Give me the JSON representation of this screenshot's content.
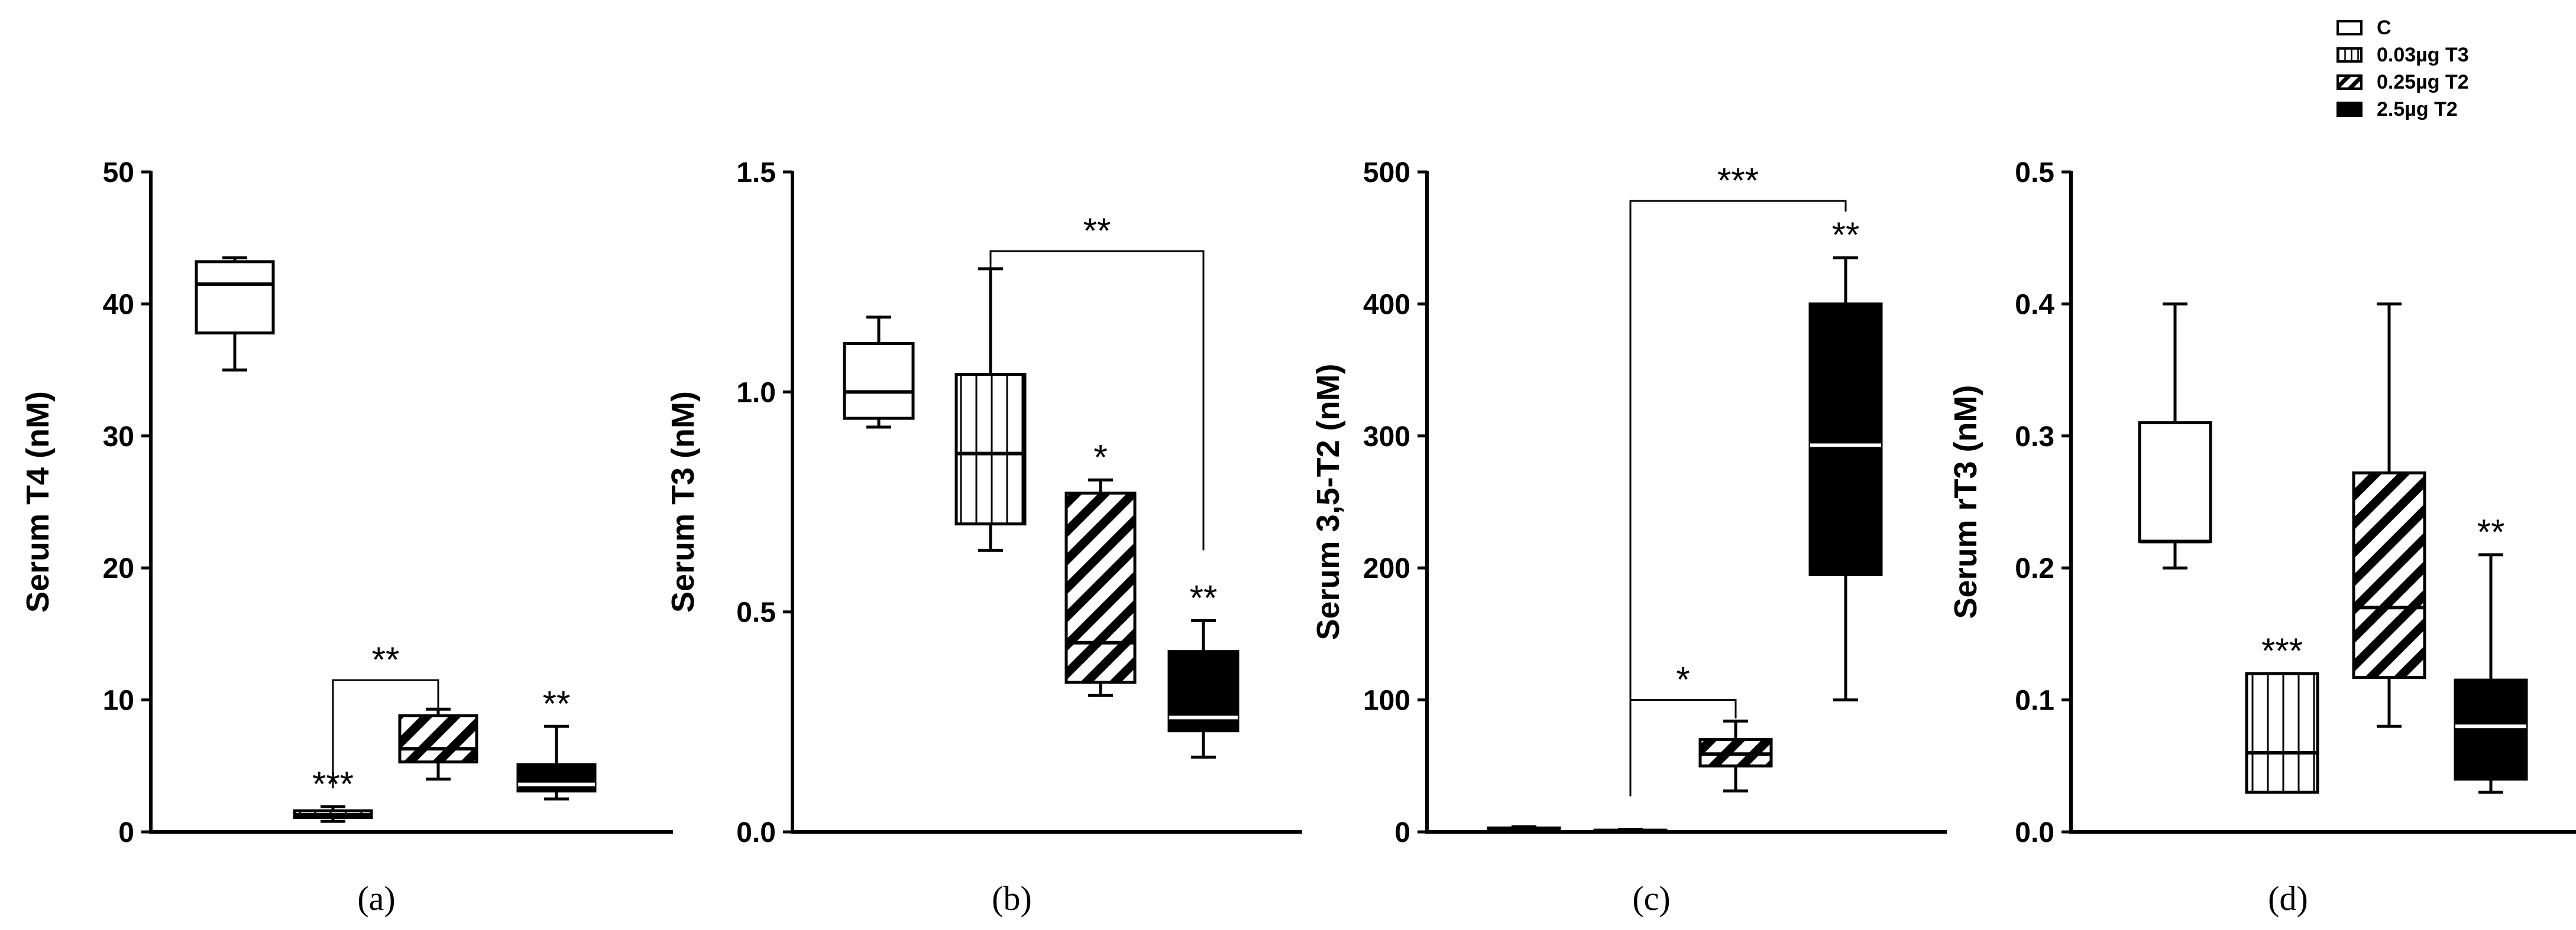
{
  "legend": [
    {
      "label": "C",
      "pattern": "empty"
    },
    {
      "label": "0.03µg T3",
      "pattern": "vertical"
    },
    {
      "label": "0.25µg T2",
      "pattern": "diagonal"
    },
    {
      "label": "2.5µg T2",
      "pattern": "solid"
    }
  ],
  "colors": {
    "stroke": "#000000",
    "fill_empty": "#ffffff",
    "fill_solid": "#000000"
  },
  "chart_data": [
    {
      "type": "box",
      "panel_label": "(a)",
      "panel_letter": "a",
      "ylabel": "Serum T4 (nM)",
      "ylim": [
        0,
        50
      ],
      "yticks": [
        0,
        10,
        20,
        30,
        40,
        50
      ],
      "ytick_labels": [
        "0",
        "10",
        "20",
        "30",
        "40",
        "50"
      ],
      "groups": [
        "C",
        "0.03µg T3",
        "0.25µg T2",
        "2.5µg T2"
      ],
      "boxes": [
        {
          "group": "C",
          "min": 35,
          "q1": 37.8,
          "median": 41.5,
          "q3": 43.2,
          "max": 43.5
        },
        {
          "group": "0.03µg T3",
          "min": 0.8,
          "q1": 1.1,
          "median": 1.3,
          "q3": 1.6,
          "max": 1.9
        },
        {
          "group": "0.25µg T2",
          "min": 4,
          "q1": 5.3,
          "median": 6.3,
          "q3": 8.8,
          "max": 9.3
        },
        {
          "group": "2.5µg T2",
          "min": 2.5,
          "q1": 3.1,
          "median": 3.6,
          "q3": 5.1,
          "max": 8
        }
      ],
      "significance": [
        {
          "group": "0.03µg T3",
          "text": "***",
          "at": 1.9
        },
        {
          "group": "2.5µg T2",
          "text": "**",
          "at": 8
        }
      ],
      "brackets": [
        {
          "from": "0.03µg T3",
          "to": "0.25µg T2",
          "bar_at": 11.5,
          "drop_from_to": 3.3,
          "drop_to_to": 9.3,
          "text": "**"
        }
      ]
    },
    {
      "type": "box",
      "panel_label": "(b)",
      "panel_letter": "b",
      "ylabel": "Serum T3 (nM)",
      "ylim": [
        0,
        1.5
      ],
      "yticks": [
        0,
        0.5,
        1.0,
        1.5
      ],
      "ytick_labels": [
        "0.0",
        "0.5",
        "1.0",
        "1.5"
      ],
      "groups": [
        "C",
        "0.03µg T3",
        "0.25µg T2",
        "2.5µg T2"
      ],
      "boxes": [
        {
          "group": "C",
          "min": 0.92,
          "q1": 0.94,
          "median": 1.0,
          "q3": 1.11,
          "max": 1.17
        },
        {
          "group": "0.03µg T3",
          "min": 0.64,
          "q1": 0.7,
          "median": 0.86,
          "q3": 1.04,
          "max": 1.28
        },
        {
          "group": "0.25µg T2",
          "min": 0.31,
          "q1": 0.34,
          "median": 0.43,
          "q3": 0.77,
          "max": 0.8
        },
        {
          "group": "2.5µg T2",
          "min": 0.17,
          "q1": 0.23,
          "median": 0.26,
          "q3": 0.41,
          "max": 0.48
        }
      ],
      "significance": [
        {
          "group": "0.25µg T2",
          "text": "*",
          "at": 0.8
        },
        {
          "group": "2.5µg T2",
          "text": "**",
          "at": 0.48
        }
      ],
      "brackets": [
        {
          "from": "0.03µg T3",
          "to": "2.5µg T2",
          "bar_at": 1.32,
          "drop_from_to": 1.28,
          "drop_to_to": 0.64,
          "text": "**"
        }
      ]
    },
    {
      "type": "box",
      "panel_label": "(c)",
      "panel_letter": "c",
      "ylabel": "Serum 3,5-T2 (nM)",
      "ylim": [
        0,
        500
      ],
      "yticks": [
        0,
        100,
        200,
        300,
        400,
        500
      ],
      "ytick_labels": [
        "0",
        "100",
        "200",
        "300",
        "400",
        "500"
      ],
      "groups": [
        "C",
        "0.03µg T3",
        "0.25µg T2",
        "2.5µg T2"
      ],
      "boxes": [
        {
          "group": "C",
          "min": 1,
          "q1": 1.5,
          "median": 2,
          "q3": 3,
          "max": 4
        },
        {
          "group": "0.03µg T3",
          "min": 0.5,
          "q1": 0.8,
          "median": 1,
          "q3": 1.3,
          "max": 2
        },
        {
          "group": "0.25µg T2",
          "min": 31,
          "q1": 50,
          "median": 59,
          "q3": 70,
          "max": 84
        },
        {
          "group": "2.5µg T2",
          "min": 100,
          "q1": 195,
          "median": 293,
          "q3": 400,
          "max": 435
        }
      ],
      "significance": [
        {
          "group": "2.5µg T2",
          "text": "**",
          "at": 435
        }
      ],
      "brackets": [
        {
          "from": "0.03µg T3",
          "to": "0.25µg T2",
          "bar_at": 100,
          "drop_from_to": 27,
          "drop_to_to": 86,
          "text": "*"
        },
        {
          "from": "0.03µg T3",
          "to": "2.5µg T2",
          "bar_at": 478,
          "drop_from_to": 27,
          "drop_to_to": 470,
          "text": "***"
        }
      ]
    },
    {
      "type": "box",
      "panel_label": "(d)",
      "panel_letter": "d",
      "ylabel": "Serum rT3 (nM)",
      "ylim": [
        0,
        0.5
      ],
      "yticks": [
        0,
        0.1,
        0.2,
        0.3,
        0.4,
        0.5
      ],
      "ytick_labels": [
        "0.0",
        "0.1",
        "0.2",
        "0.3",
        "0.4",
        "0.5"
      ],
      "groups": [
        "C",
        "0.03µg T3",
        "0.25µg T2",
        "2.5µg T2"
      ],
      "boxes": [
        {
          "group": "C",
          "min": 0.2,
          "q1": 0.22,
          "median": 0.22,
          "q3": 0.31,
          "max": 0.4
        },
        {
          "group": "0.03µg T3",
          "min": 0.03,
          "q1": 0.03,
          "median": 0.06,
          "q3": 0.12,
          "max": 0.12
        },
        {
          "group": "0.25µg T2",
          "min": 0.08,
          "q1": 0.117,
          "median": 0.17,
          "q3": 0.272,
          "max": 0.4
        },
        {
          "group": "2.5µg T2",
          "min": 0.03,
          "q1": 0.04,
          "median": 0.08,
          "q3": 0.115,
          "max": 0.21
        }
      ],
      "significance": [
        {
          "group": "0.03µg T3",
          "text": "***",
          "at": 0.12
        },
        {
          "group": "2.5µg T2",
          "text": "**",
          "at": 0.21
        }
      ],
      "brackets": []
    }
  ]
}
